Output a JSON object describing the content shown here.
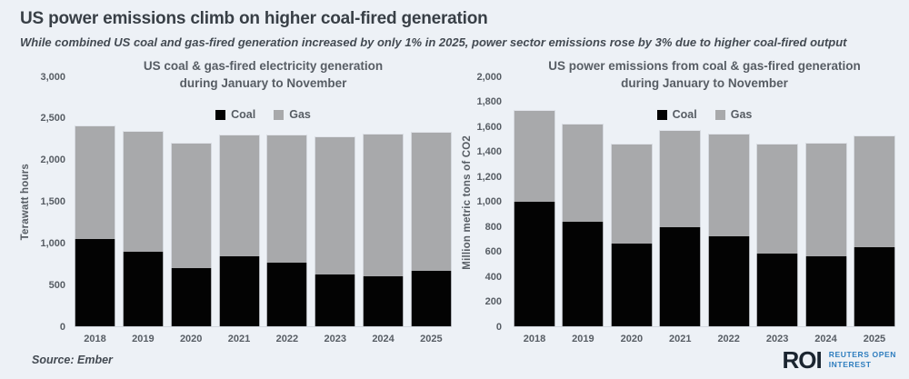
{
  "header": {
    "title": "US power emissions climb on higher coal-fired generation",
    "subtitle": "While combined US coal and gas-fired generation increased by only 1% in 2025, power sector emissions rose by 3% due to higher coal-fired output"
  },
  "colors": {
    "background": "#edf1f6",
    "coal": "#030303",
    "gas": "#a8a9ab",
    "heading": "#383f46",
    "subtitle": "#434a52",
    "chart_text": "#575d64",
    "axis_line": "#d3d8df",
    "roi_navy": "#1b2530",
    "reuters_blue": "#2e7dbe"
  },
  "chart_data": [
    {
      "type": "bar",
      "stacked": true,
      "title_lines": [
        "US coal & gas-fired electricity generation",
        "during January to November"
      ],
      "ylabel": "Terawatt hours",
      "xlabel": "",
      "ylim": [
        0,
        3000
      ],
      "grid": false,
      "legend_position": "top-center",
      "categories": [
        "2018",
        "2019",
        "2020",
        "2021",
        "2022",
        "2023",
        "2024",
        "2025"
      ],
      "series": [
        {
          "name": "Coal",
          "color_key": "coal",
          "values": [
            1050,
            900,
            700,
            840,
            760,
            620,
            600,
            670
          ]
        },
        {
          "name": "Gas",
          "color_key": "gas",
          "values": [
            1360,
            1450,
            1500,
            1460,
            1540,
            1660,
            1710,
            1670
          ]
        }
      ],
      "totals": [
        2410,
        2350,
        2200,
        2300,
        2300,
        2280,
        2310,
        2340
      ],
      "yticks": [
        {
          "v": 0,
          "label": "0"
        },
        {
          "v": 500,
          "label": "500"
        },
        {
          "v": 1000,
          "label": "1,000"
        },
        {
          "v": 1500,
          "label": "1,500"
        },
        {
          "v": 2000,
          "label": "2,000"
        },
        {
          "v": 2500,
          "label": "2,500"
        },
        {
          "v": 3000,
          "label": "3,000"
        }
      ]
    },
    {
      "type": "bar",
      "stacked": true,
      "title_lines": [
        "US power emissions from coal & gas-fired generation",
        "during January to November"
      ],
      "ylabel": "Million metric tons of CO2",
      "xlabel": "",
      "ylim": [
        0,
        2000
      ],
      "grid": false,
      "legend_position": "top-center",
      "categories": [
        "2018",
        "2019",
        "2020",
        "2021",
        "2022",
        "2023",
        "2024",
        "2025"
      ],
      "series": [
        {
          "name": "Coal",
          "color_key": "coal",
          "values": [
            1000,
            840,
            660,
            790,
            720,
            580,
            560,
            630
          ]
        },
        {
          "name": "Gas",
          "color_key": "gas",
          "values": [
            730,
            780,
            800,
            780,
            820,
            880,
            910,
            900
          ]
        }
      ],
      "totals": [
        1730,
        1620,
        1460,
        1570,
        1540,
        1460,
        1470,
        1530
      ],
      "yticks": [
        {
          "v": 0,
          "label": "0"
        },
        {
          "v": 200,
          "label": "200"
        },
        {
          "v": 400,
          "label": "400"
        },
        {
          "v": 600,
          "label": "600"
        },
        {
          "v": 800,
          "label": "800"
        },
        {
          "v": 1000,
          "label": "1,000"
        },
        {
          "v": 1200,
          "label": "1,200"
        },
        {
          "v": 1400,
          "label": "1,400"
        },
        {
          "v": 1600,
          "label": "1,600"
        },
        {
          "v": 1800,
          "label": "1,800"
        },
        {
          "v": 2000,
          "label": "2,000"
        }
      ]
    }
  ],
  "footer": {
    "source": "Source: Ember",
    "logo": {
      "roi": "ROI",
      "line1": "REUTERS OPEN",
      "line2": "INTEREST"
    }
  }
}
